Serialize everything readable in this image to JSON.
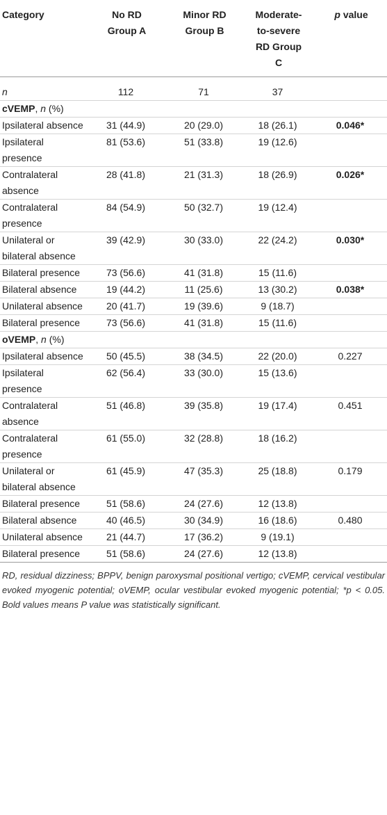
{
  "table": {
    "header": [
      "Category",
      "No RD Group A",
      "Minor RD Group B",
      "Moderate-to-severe RD Group C",
      [
        "p",
        "value"
      ]
    ],
    "n_row": {
      "label": "n",
      "values": [
        112,
        71,
        37
      ]
    },
    "sections": [
      {
        "label": [
          "cVEMP",
          ", ",
          "n",
          " (%)"
        ],
        "rows": [
          {
            "category": "Ipsilateral absence",
            "values": [
              "31 (44.9)",
              "20 (29.0)",
              "18 (26.1)"
            ],
            "p": "0.046*",
            "significant": true
          },
          {
            "category": "Ipsilateral presence",
            "values": [
              "81 (53.6)",
              "51 (33.8)",
              "19 (12.6)"
            ]
          },
          {
            "category": "Contralateral absence",
            "values": [
              "28 (41.8)",
              "21 (31.3)",
              "18 (26.9)"
            ],
            "p": "0.026*",
            "significant": true
          },
          {
            "category": "Contralateral presence",
            "values": [
              "84 (54.9)",
              "50 (32.7)",
              "19 (12.4)"
            ]
          },
          {
            "category": "Unilateral or bilateral absence",
            "values": [
              "39 (42.9)",
              "30 (33.0)",
              "22 (24.2)"
            ],
            "p": "0.030*",
            "significant": true
          },
          {
            "category": "Bilateral presence",
            "values": [
              "73 (56.6)",
              "41 (31.8)",
              "15 (11.6)"
            ]
          },
          {
            "category": "Bilateral absence",
            "values": [
              "19 (44.2)",
              "11 (25.6)",
              "13 (30.2)"
            ],
            "p": "0.038*",
            "significant": true
          },
          {
            "category": "Unilateral absence",
            "values": [
              "20 (41.7)",
              "19 (39.6)",
              "9 (18.7)"
            ]
          },
          {
            "category": "Bilateral presence",
            "values": [
              "73 (56.6)",
              "41 (31.8)",
              "15 (11.6)"
            ]
          }
        ]
      },
      {
        "label": [
          "oVEMP",
          ", ",
          "n",
          " (%)"
        ],
        "rows": [
          {
            "category": "Ipsilateral absence",
            "values": [
              "50 (45.5)",
              "38 (34.5)",
              "22 (20.0)"
            ],
            "p": "0.227",
            "significant": false
          },
          {
            "category": "Ipsilateral presence",
            "values": [
              "62 (56.4)",
              "33 (30.0)",
              "15 (13.6)"
            ]
          },
          {
            "category": "Contralateral absence",
            "values": [
              "51 (46.8)",
              "39 (35.8)",
              "19 (17.4)"
            ],
            "p": "0.451",
            "significant": false
          },
          {
            "category": "Contralateral presence",
            "values": [
              "61 (55.0)",
              "32 (28.8)",
              "18 (16.2)"
            ]
          },
          {
            "category": "Unilateral or bilateral absence",
            "values": [
              "61 (45.9)",
              "47 (35.3)",
              "25 (18.8)"
            ],
            "p": "0.179",
            "significant": false
          },
          {
            "category": "Bilateral presence",
            "values": [
              "51 (58.6)",
              "24 (27.6)",
              "12 (13.8)"
            ]
          },
          {
            "category": "Bilateral absence",
            "values": [
              "40 (46.5)",
              "30 (34.9)",
              "16 (18.6)"
            ],
            "p": "0.480",
            "significant": false
          },
          {
            "category": "Unilateral absence",
            "values": [
              "21 (44.7)",
              "17 (36.2)",
              "9 (19.1)"
            ]
          },
          {
            "category": "Bilateral presence",
            "values": [
              "51 (58.6)",
              "24 (27.6)",
              "12 (13.8)"
            ]
          }
        ]
      }
    ],
    "footnote": "RD, residual dizziness; BPPV, benign paroxysmal positional vertigo; cVEMP, cervical vestibular evoked myogenic potential; oVEMP, ocular vestibular evoked myogenic potential; *p < 0.05. Bold values means P value was statistically significant."
  }
}
